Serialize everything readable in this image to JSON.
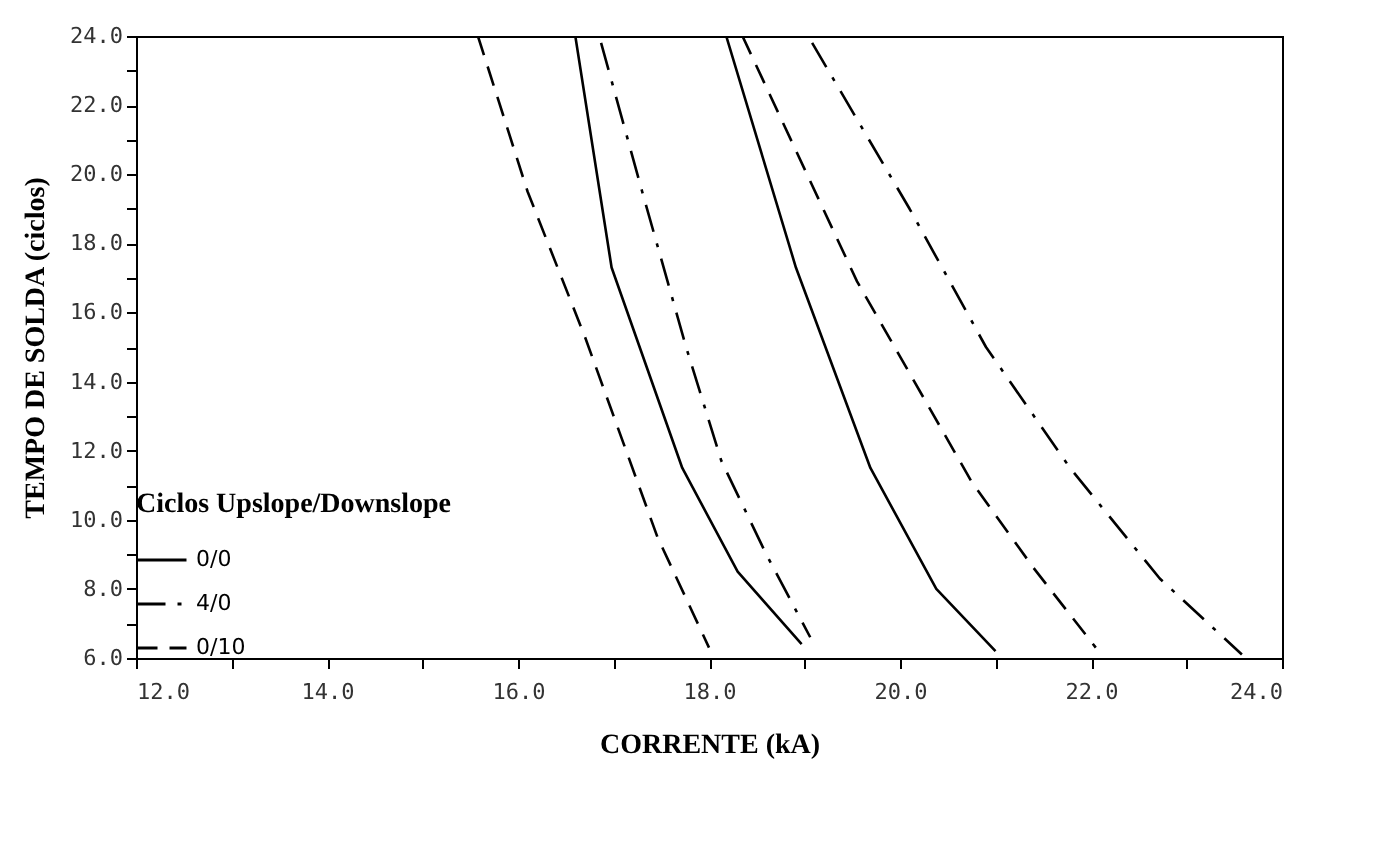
{
  "chart_data": {
    "type": "line",
    "xlabel": "CORRENTE (kA)",
    "ylabel": "TEMPO DE SOLDA (ciclos)",
    "legend_title": "Ciclos Upslope/Downslope",
    "legend": "bottom left",
    "grid": false,
    "xlim": [
      12,
      24
    ],
    "ylim": [
      6,
      24
    ],
    "xticks": [
      {
        "value": 12,
        "label": "12.0"
      },
      {
        "value": 13,
        "label": null
      },
      {
        "value": 14,
        "label": "14.0"
      },
      {
        "value": 15,
        "label": null
      },
      {
        "value": 16,
        "label": "16.0"
      },
      {
        "value": 17,
        "label": null
      },
      {
        "value": 18,
        "label": "18.0"
      },
      {
        "value": 19,
        "label": null
      },
      {
        "value": 20,
        "label": "20.0"
      },
      {
        "value": 21,
        "label": null
      },
      {
        "value": 22,
        "label": "22.0"
      },
      {
        "value": 23,
        "label": null
      },
      {
        "value": 24,
        "label": "24.0"
      }
    ],
    "yticks": [
      {
        "value": 6,
        "label": "6.0"
      },
      {
        "value": 7,
        "label": null
      },
      {
        "value": 8,
        "label": "8.0"
      },
      {
        "value": 9,
        "label": null
      },
      {
        "value": 10,
        "label": "10.0"
      },
      {
        "value": 11,
        "label": null
      },
      {
        "value": 12,
        "label": "12.0"
      },
      {
        "value": 13,
        "label": null
      },
      {
        "value": 14,
        "label": "14.0"
      },
      {
        "value": 15,
        "label": null
      },
      {
        "value": 16,
        "label": "16.0"
      },
      {
        "value": 17,
        "label": null
      },
      {
        "value": 18,
        "label": "18.0"
      },
      {
        "value": 19,
        "label": null
      },
      {
        "value": 20,
        "label": "20.0"
      },
      {
        "value": 21,
        "label": null
      },
      {
        "value": 22,
        "label": "22.0"
      },
      {
        "value": 23,
        "label": null
      },
      {
        "value": 24,
        "label": "24.0"
      }
    ],
    "series": [
      {
        "name": "0/0",
        "color": "#000000",
        "line_style": "solid",
        "x": [
          16.6,
          16.98,
          17.72,
          18.3,
          18.97,
          null,
          18.18,
          18.91,
          19.69,
          20.38,
          21.0
        ],
        "values": [
          24,
          17.3,
          11.5,
          8.5,
          6.4,
          null,
          24,
          17.3,
          11.5,
          8.0,
          6.2
        ]
      },
      {
        "name": "4/0",
        "color": "#000000",
        "line_style": "dashdot",
        "x": [
          16.87,
          17.3,
          17.76,
          18.13,
          18.6,
          19.06,
          null,
          19.08,
          20.1,
          20.9,
          21.78,
          22.72,
          23.58
        ],
        "values": [
          23.8,
          19.5,
          15.0,
          11.7,
          9.0,
          6.6,
          null,
          23.8,
          19.0,
          15.0,
          11.5,
          8.3,
          6.1
        ]
      },
      {
        "name": "0/10",
        "color": "#000000",
        "line_style": "dashed",
        "x": [
          15.58,
          16.1,
          16.7,
          17.46,
          18.0,
          null,
          18.35,
          19.55,
          20.75,
          21.4,
          22.05
        ],
        "values": [
          24,
          19.5,
          15.3,
          9.5,
          6.3,
          null,
          24,
          16.9,
          11.1,
          8.6,
          6.3
        ]
      }
    ]
  }
}
